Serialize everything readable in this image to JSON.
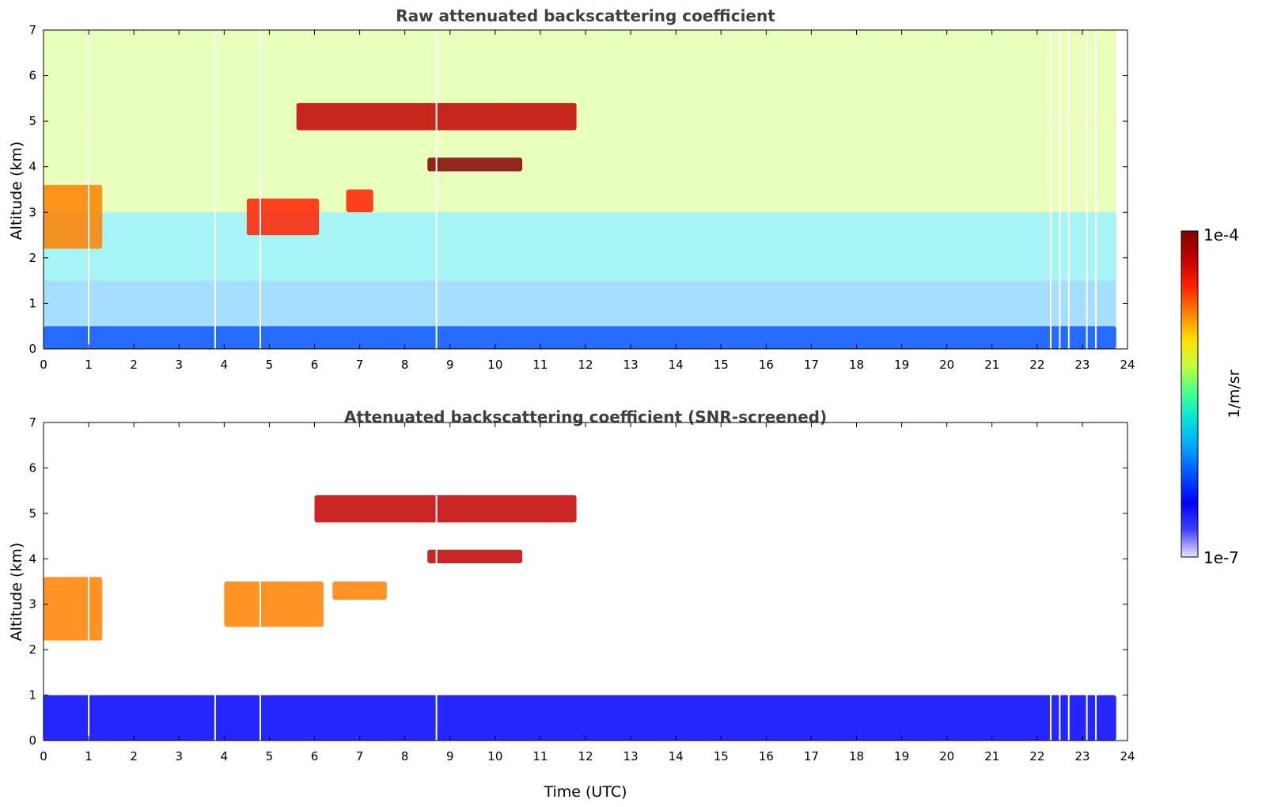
{
  "chart_data": [
    {
      "type": "heatmap",
      "title": "Raw attenuated backscattering coefficient",
      "xlabel": "",
      "ylabel": "Altitude (km)",
      "xlim": [
        0,
        24
      ],
      "ylim": [
        0,
        7
      ],
      "x_ticks": [
        "0",
        "1",
        "2",
        "3",
        "4",
        "5",
        "6",
        "7",
        "8",
        "9",
        "10",
        "11",
        "12",
        "13",
        "14",
        "15",
        "16",
        "17",
        "18",
        "19",
        "20",
        "21",
        "22",
        "23",
        "24"
      ],
      "y_ticks": [
        "0",
        "1",
        "2",
        "3",
        "4",
        "5",
        "6",
        "7"
      ],
      "features": [
        {
          "name": "boundary-layer",
          "x": [
            0,
            23.75
          ],
          "y": [
            0,
            0.5
          ],
          "level": 0.22
        },
        {
          "name": "cloud-layer-low",
          "x": [
            0,
            1.3
          ],
          "y": [
            2.2,
            3.6
          ],
          "level": 0.78
        },
        {
          "name": "cloud-layer-mid",
          "x": [
            4.5,
            6.1
          ],
          "y": [
            2.5,
            3.3
          ],
          "level": 0.85
        },
        {
          "name": "cloud-layer-7h",
          "x": [
            6.7,
            7.3
          ],
          "y": [
            3.0,
            3.5
          ],
          "level": 0.8
        },
        {
          "name": "cloud-layer-4km",
          "x": [
            8.5,
            10.6
          ],
          "y": [
            3.9,
            4.2
          ],
          "level": 0.97
        },
        {
          "name": "cloud-layer-5km",
          "x": [
            5.6,
            11.8
          ],
          "y": [
            4.8,
            5.4
          ],
          "level": 0.95
        }
      ],
      "gaps_utc": [
        1.0,
        3.8,
        4.8,
        8.7,
        22.3,
        22.5,
        22.7,
        23.1,
        23.3
      ]
    },
    {
      "type": "heatmap",
      "title": "Attenuated backscattering coefficient (SNR-screened)",
      "xlabel": "Time (UTC)",
      "ylabel": "Altitude (km)",
      "xlim": [
        0,
        24
      ],
      "ylim": [
        0,
        7
      ],
      "x_ticks": [
        "0",
        "1",
        "2",
        "3",
        "4",
        "5",
        "6",
        "7",
        "8",
        "9",
        "10",
        "11",
        "12",
        "13",
        "14",
        "15",
        "16",
        "17",
        "18",
        "19",
        "20",
        "21",
        "22",
        "23",
        "24"
      ],
      "y_ticks": [
        "0",
        "1",
        "2",
        "3",
        "4",
        "5",
        "6",
        "7"
      ],
      "features": [
        {
          "name": "boundary-layer",
          "x": [
            0,
            23.75
          ],
          "y": [
            0,
            1.0
          ],
          "level": 0.2
        },
        {
          "name": "cloud-layer-low",
          "x": [
            0,
            1.3
          ],
          "y": [
            2.2,
            3.6
          ],
          "level": 0.75
        },
        {
          "name": "cloud-layer-mid",
          "x": [
            4.0,
            6.2
          ],
          "y": [
            2.5,
            3.5
          ],
          "level": 0.72
        },
        {
          "name": "cloud-layer-7h",
          "x": [
            6.4,
            7.6
          ],
          "y": [
            3.1,
            3.5
          ],
          "level": 0.75
        },
        {
          "name": "cloud-layer-4km",
          "x": [
            8.5,
            10.6
          ],
          "y": [
            3.9,
            4.2
          ],
          "level": 0.95
        },
        {
          "name": "cloud-layer-5km",
          "x": [
            6.0,
            11.8
          ],
          "y": [
            4.8,
            5.4
          ],
          "level": 0.92
        }
      ],
      "gaps_utc": [
        1.0,
        3.8,
        4.8,
        8.7,
        22.3,
        22.5,
        22.7,
        23.1,
        23.3
      ]
    }
  ],
  "colorbar": {
    "label": "1/m/sr",
    "max_label": "1e-4",
    "min_label": "1e-7",
    "colors": [
      "#e6e6ff",
      "#4040ff",
      "#0000ff",
      "#0050ff",
      "#00a0ff",
      "#00e0e0",
      "#40ff90",
      "#c0ff40",
      "#ffe000",
      "#ff8000",
      "#ff2000",
      "#c00000",
      "#800000"
    ]
  }
}
